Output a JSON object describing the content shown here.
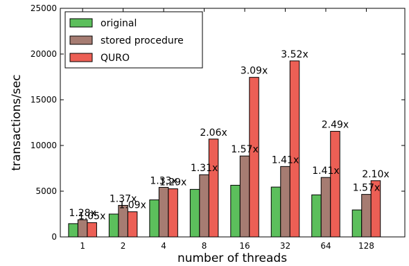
{
  "chart_data": {
    "type": "bar",
    "xlabel": "number of threads",
    "ylabel": "transactions/sec",
    "ylim": [
      0,
      25000
    ],
    "yticks": [
      0,
      5000,
      10000,
      15000,
      20000,
      25000
    ],
    "categories": [
      "1",
      "2",
      "4",
      "8",
      "16",
      "32",
      "64",
      "128"
    ],
    "series": [
      {
        "name": "original",
        "color": "#5cbf5c",
        "values": [
          1450,
          2500,
          4050,
          5200,
          5650,
          5450,
          4600,
          2950
        ]
      },
      {
        "name": "stored procedure",
        "color": "#a67c72",
        "values": [
          1880,
          3450,
          5420,
          6800,
          8850,
          7700,
          6500,
          4650
        ]
      },
      {
        "name": "QURO",
        "color": "#ec5f55",
        "values": [
          1560,
          2750,
          5260,
          10700,
          17450,
          19250,
          11550,
          6150
        ]
      }
    ],
    "annotations": [
      {
        "category": "1",
        "series": "stored procedure",
        "text": "1.28x"
      },
      {
        "category": "1",
        "series": "QURO",
        "text": "1.05x"
      },
      {
        "category": "2",
        "series": "stored procedure",
        "text": "1.37x"
      },
      {
        "category": "2",
        "series": "QURO",
        "text": "1.09x"
      },
      {
        "category": "4",
        "series": "stored procedure",
        "text": "1.33x"
      },
      {
        "category": "4",
        "series": "QURO",
        "text": "1.29x"
      },
      {
        "category": "8",
        "series": "stored procedure",
        "text": "1.31x"
      },
      {
        "category": "8",
        "series": "QURO",
        "text": "2.06x"
      },
      {
        "category": "16",
        "series": "stored procedure",
        "text": "1.57x"
      },
      {
        "category": "16",
        "series": "QURO",
        "text": "3.09x"
      },
      {
        "category": "32",
        "series": "stored procedure",
        "text": "1.41x"
      },
      {
        "category": "32",
        "series": "QURO",
        "text": "3.52x"
      },
      {
        "category": "64",
        "series": "stored procedure",
        "text": "1.41x"
      },
      {
        "category": "64",
        "series": "QURO",
        "text": "2.49x"
      },
      {
        "category": "128",
        "series": "stored procedure",
        "text": "1.57x"
      },
      {
        "category": "128",
        "series": "QURO",
        "text": "2.10x"
      }
    ],
    "legend_position": "top-left",
    "grid": false
  }
}
